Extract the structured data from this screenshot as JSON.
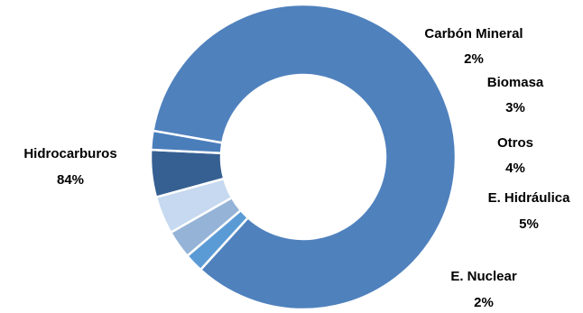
{
  "chart_data": {
    "type": "pie",
    "variant": "donut",
    "slices": [
      {
        "name": "Hidrocarburos",
        "value": 84,
        "label": "84%",
        "color": "#4f81bd"
      },
      {
        "name": "Carbón Mineral",
        "value": 2,
        "label": "2%",
        "color": "#5b9bd5"
      },
      {
        "name": "Biomasa",
        "value": 3,
        "label": "3%",
        "color": "#95b3d7"
      },
      {
        "name": "Otros",
        "value": 4,
        "label": "4%",
        "color": "#c6d9f0"
      },
      {
        "name": "E. Hidráulica",
        "value": 5,
        "label": "5%",
        "color": "#366092"
      },
      {
        "name": "E. Nuclear",
        "value": 2,
        "label": "2%",
        "color": "#4a7ebb"
      }
    ],
    "slice_border_color": "#ffffff",
    "legend": "none"
  }
}
